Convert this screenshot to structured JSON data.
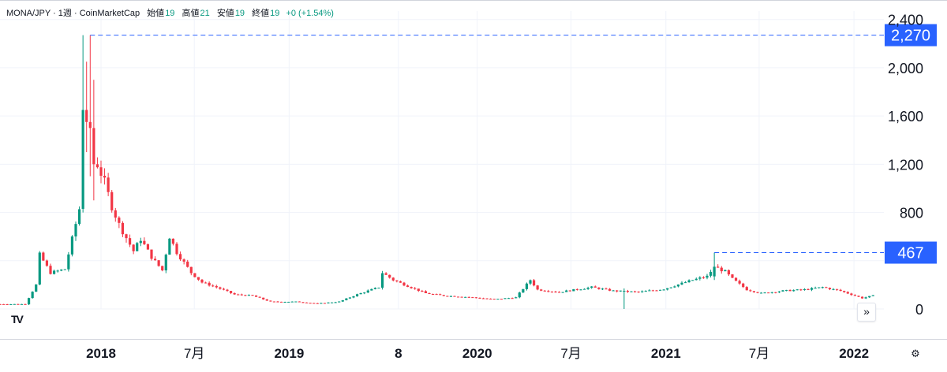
{
  "legend": {
    "symbol": "MONA/JPY · 1週 · CoinMarketCap",
    "open_label": "始値",
    "open_value": "19",
    "high_label": "高値",
    "high_value": "21",
    "low_label": "安値",
    "low_value": "19",
    "close_label": "終値",
    "close_value": "19",
    "change": "+0 (+1.54%)"
  },
  "colors": {
    "up": "#089981",
    "down": "#f23645",
    "badge": "#2962ff",
    "grid": "#f0f3fa",
    "dash": "#2962ff"
  },
  "icons": {
    "logo": "tradingview-logo-icon",
    "scroll": "scroll-to-realtime-icon",
    "settings": "settings-gear-icon"
  },
  "scroll_glyph": "»",
  "settings_glyph": "⚙",
  "logo_text": "TV",
  "chart_data": {
    "type": "candlestick",
    "y_ticks": [
      0,
      400,
      800,
      1200,
      1600,
      2000,
      2400
    ],
    "y_tick_labels": [
      "0",
      "",
      "800",
      "1,200",
      "1,600",
      "2,000",
      "2,400"
    ],
    "ylim": [
      0,
      2470
    ],
    "x_ticks": [
      {
        "label": "2018",
        "date": "2018-01-01",
        "bold": true
      },
      {
        "label": "7月",
        "date": "2018-07-01",
        "bold": false
      },
      {
        "label": "2019",
        "date": "2019-01-01",
        "bold": true
      },
      {
        "label": "8",
        "date": "2019-08-01",
        "bold": true
      },
      {
        "label": "2020",
        "date": "2020-01-01",
        "bold": true
      },
      {
        "label": "7月",
        "date": "2020-07-01",
        "bold": false
      },
      {
        "label": "2021",
        "date": "2021-01-01",
        "bold": true
      },
      {
        "label": "7月",
        "date": "2021-07-01",
        "bold": false
      },
      {
        "label": "2022",
        "date": "2022-01-01",
        "bold": true
      }
    ],
    "xlim": [
      "2017-06-19",
      "2022-02-28"
    ],
    "price_markers": [
      {
        "label": "2,270",
        "value": 2270,
        "from_date": "2017-12-11"
      },
      {
        "label": "467",
        "value": 467,
        "from_date": "2021-04-05"
      }
    ],
    "anchors": [
      [
        "2017-06-19",
        40
      ],
      [
        "2017-08-07",
        40
      ],
      [
        "2017-08-28",
        200
      ],
      [
        "2017-09-04",
        450
      ],
      [
        "2017-09-25",
        300
      ],
      [
        "2017-10-23",
        330
      ],
      [
        "2017-11-20",
        830
      ],
      [
        "2017-11-27",
        1650
      ],
      [
        "2017-12-11",
        1550
      ],
      [
        "2017-12-25",
        1200
      ],
      [
        "2018-01-08",
        1050
      ],
      [
        "2018-01-22",
        850
      ],
      [
        "2018-02-05",
        700
      ],
      [
        "2018-03-05",
        480
      ],
      [
        "2018-03-19",
        580
      ],
      [
        "2018-04-09",
        430
      ],
      [
        "2018-04-30",
        320
      ],
      [
        "2018-05-14",
        600
      ],
      [
        "2018-05-28",
        470
      ],
      [
        "2018-06-25",
        300
      ],
      [
        "2018-07-16",
        220
      ],
      [
        "2018-08-13",
        180
      ],
      [
        "2018-09-17",
        120
      ],
      [
        "2018-10-22",
        110
      ],
      [
        "2018-11-26",
        60
      ],
      [
        "2019-01-14",
        60
      ],
      [
        "2019-02-25",
        45
      ],
      [
        "2019-04-08",
        60
      ],
      [
        "2019-05-13",
        120
      ],
      [
        "2019-06-24",
        180
      ],
      [
        "2019-07-01",
        300
      ],
      [
        "2019-07-22",
        240
      ],
      [
        "2019-08-19",
        190
      ],
      [
        "2019-09-23",
        130
      ],
      [
        "2019-10-28",
        110
      ],
      [
        "2019-12-09",
        100
      ],
      [
        "2020-02-03",
        80
      ],
      [
        "2020-03-16",
        95
      ],
      [
        "2020-04-13",
        240
      ],
      [
        "2020-04-27",
        160
      ],
      [
        "2020-06-08",
        140
      ],
      [
        "2020-08-10",
        180
      ],
      [
        "2020-09-21",
        150
      ],
      [
        "2020-11-09",
        140
      ],
      [
        "2020-12-28",
        165
      ],
      [
        "2021-02-22",
        240
      ],
      [
        "2021-03-22",
        270
      ],
      [
        "2021-04-05",
        350
      ],
      [
        "2021-04-26",
        310
      ],
      [
        "2021-05-10",
        250
      ],
      [
        "2021-06-07",
        160
      ],
      [
        "2021-07-05",
        130
      ],
      [
        "2021-08-16",
        150
      ],
      [
        "2021-09-27",
        160
      ],
      [
        "2021-11-01",
        180
      ],
      [
        "2021-12-06",
        150
      ],
      [
        "2022-01-17",
        90
      ],
      [
        "2022-02-07",
        110
      ]
    ],
    "spikes": [
      {
        "date": "2017-11-27",
        "open": 830,
        "close": 1650,
        "high": 2270,
        "low": 800
      },
      {
        "date": "2017-12-04",
        "open": 1650,
        "close": 1550,
        "high": 2050,
        "low": 1300
      },
      {
        "date": "2017-12-11",
        "open": 1550,
        "close": 1500,
        "high": 2270,
        "low": 1100
      },
      {
        "date": "2017-12-18",
        "open": 1500,
        "close": 1200,
        "high": 1900,
        "low": 900
      },
      {
        "date": "2020-10-12",
        "open": 150,
        "close": 150,
        "high": 170,
        "low": 0
      },
      {
        "date": "2021-04-05",
        "open": 270,
        "close": 350,
        "high": 467,
        "low": 240
      }
    ]
  }
}
